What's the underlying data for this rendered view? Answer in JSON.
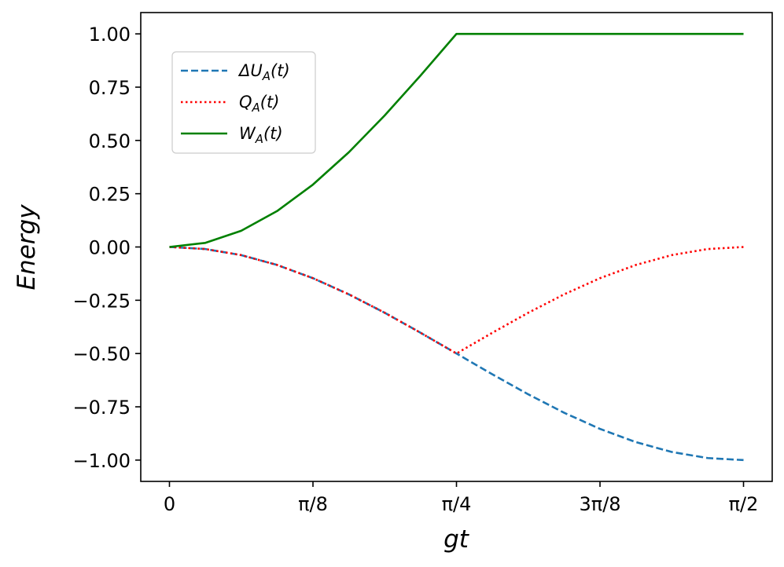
{
  "chart_data": {
    "type": "line",
    "title": "",
    "xlabel": "gt",
    "ylabel": "Energy",
    "xlim": [
      -0.0785,
      1.6493
    ],
    "ylim": [
      -1.1,
      1.1
    ],
    "grid": false,
    "legend_position": "upper-left",
    "x_ticks": [
      {
        "value": 0,
        "label": "0"
      },
      {
        "value": 0.3927,
        "label": "π/8"
      },
      {
        "value": 0.7854,
        "label": "π/4"
      },
      {
        "value": 1.1781,
        "label": "3π/8"
      },
      {
        "value": 1.5708,
        "label": "π/2"
      }
    ],
    "y_ticks": [
      {
        "value": 1.0,
        "label": "1.00"
      },
      {
        "value": 0.75,
        "label": "0.75"
      },
      {
        "value": 0.5,
        "label": "0.50"
      },
      {
        "value": 0.25,
        "label": "0.25"
      },
      {
        "value": 0.0,
        "label": "0.00"
      },
      {
        "value": -0.25,
        "label": "−0.25"
      },
      {
        "value": -0.5,
        "label": "−0.50"
      },
      {
        "value": -0.75,
        "label": "−0.75"
      },
      {
        "value": -1.0,
        "label": "−1.00"
      }
    ],
    "series": [
      {
        "name": "ΔU_A(t)",
        "legend_label": "ΔU",
        "legend_sub": "A",
        "legend_suffix": "(t)",
        "color": "#1f77b4",
        "dash": "dashed",
        "x": [
          0,
          0.0982,
          0.1963,
          0.2945,
          0.3927,
          0.4909,
          0.589,
          0.6872,
          0.7854,
          0.8836,
          0.9817,
          1.0799,
          1.1781,
          1.2763,
          1.3744,
          1.4726,
          1.5708
        ],
        "y": [
          0,
          -0.0096,
          -0.0381,
          -0.0843,
          -0.1464,
          -0.2222,
          -0.3087,
          -0.4025,
          -0.5,
          -0.5975,
          -0.6913,
          -0.7778,
          -0.8536,
          -0.9157,
          -0.9619,
          -0.9904,
          -1.0
        ]
      },
      {
        "name": "Q_A(t)",
        "legend_label": "Q",
        "legend_sub": "A",
        "legend_suffix": "(t)",
        "color": "#ff0000",
        "dash": "dotted",
        "x": [
          0,
          0.0982,
          0.1963,
          0.2945,
          0.3927,
          0.4909,
          0.589,
          0.6872,
          0.7854,
          0.8836,
          0.9817,
          1.0799,
          1.1781,
          1.2763,
          1.3744,
          1.4726,
          1.5708
        ],
        "y": [
          0,
          -0.0096,
          -0.0381,
          -0.0843,
          -0.1464,
          -0.2222,
          -0.3087,
          -0.4025,
          -0.5,
          -0.4025,
          -0.3087,
          -0.2222,
          -0.1464,
          -0.0843,
          -0.0381,
          -0.0096,
          0
        ]
      },
      {
        "name": "W_A(t)",
        "legend_label": "W",
        "legend_sub": "A",
        "legend_suffix": "(t)",
        "color": "#008000",
        "dash": "solid",
        "x": [
          0,
          0.0982,
          0.1963,
          0.2945,
          0.3927,
          0.4909,
          0.589,
          0.6872,
          0.7854,
          0.8836,
          0.9817,
          1.0799,
          1.1781,
          1.2763,
          1.3744,
          1.4726,
          1.5708
        ],
        "y": [
          0,
          0.0192,
          0.0761,
          0.1685,
          0.2929,
          0.4445,
          0.6173,
          0.8049,
          1.0,
          1.0,
          1.0,
          1.0,
          1.0,
          1.0,
          1.0,
          1.0,
          1.0
        ]
      }
    ]
  }
}
